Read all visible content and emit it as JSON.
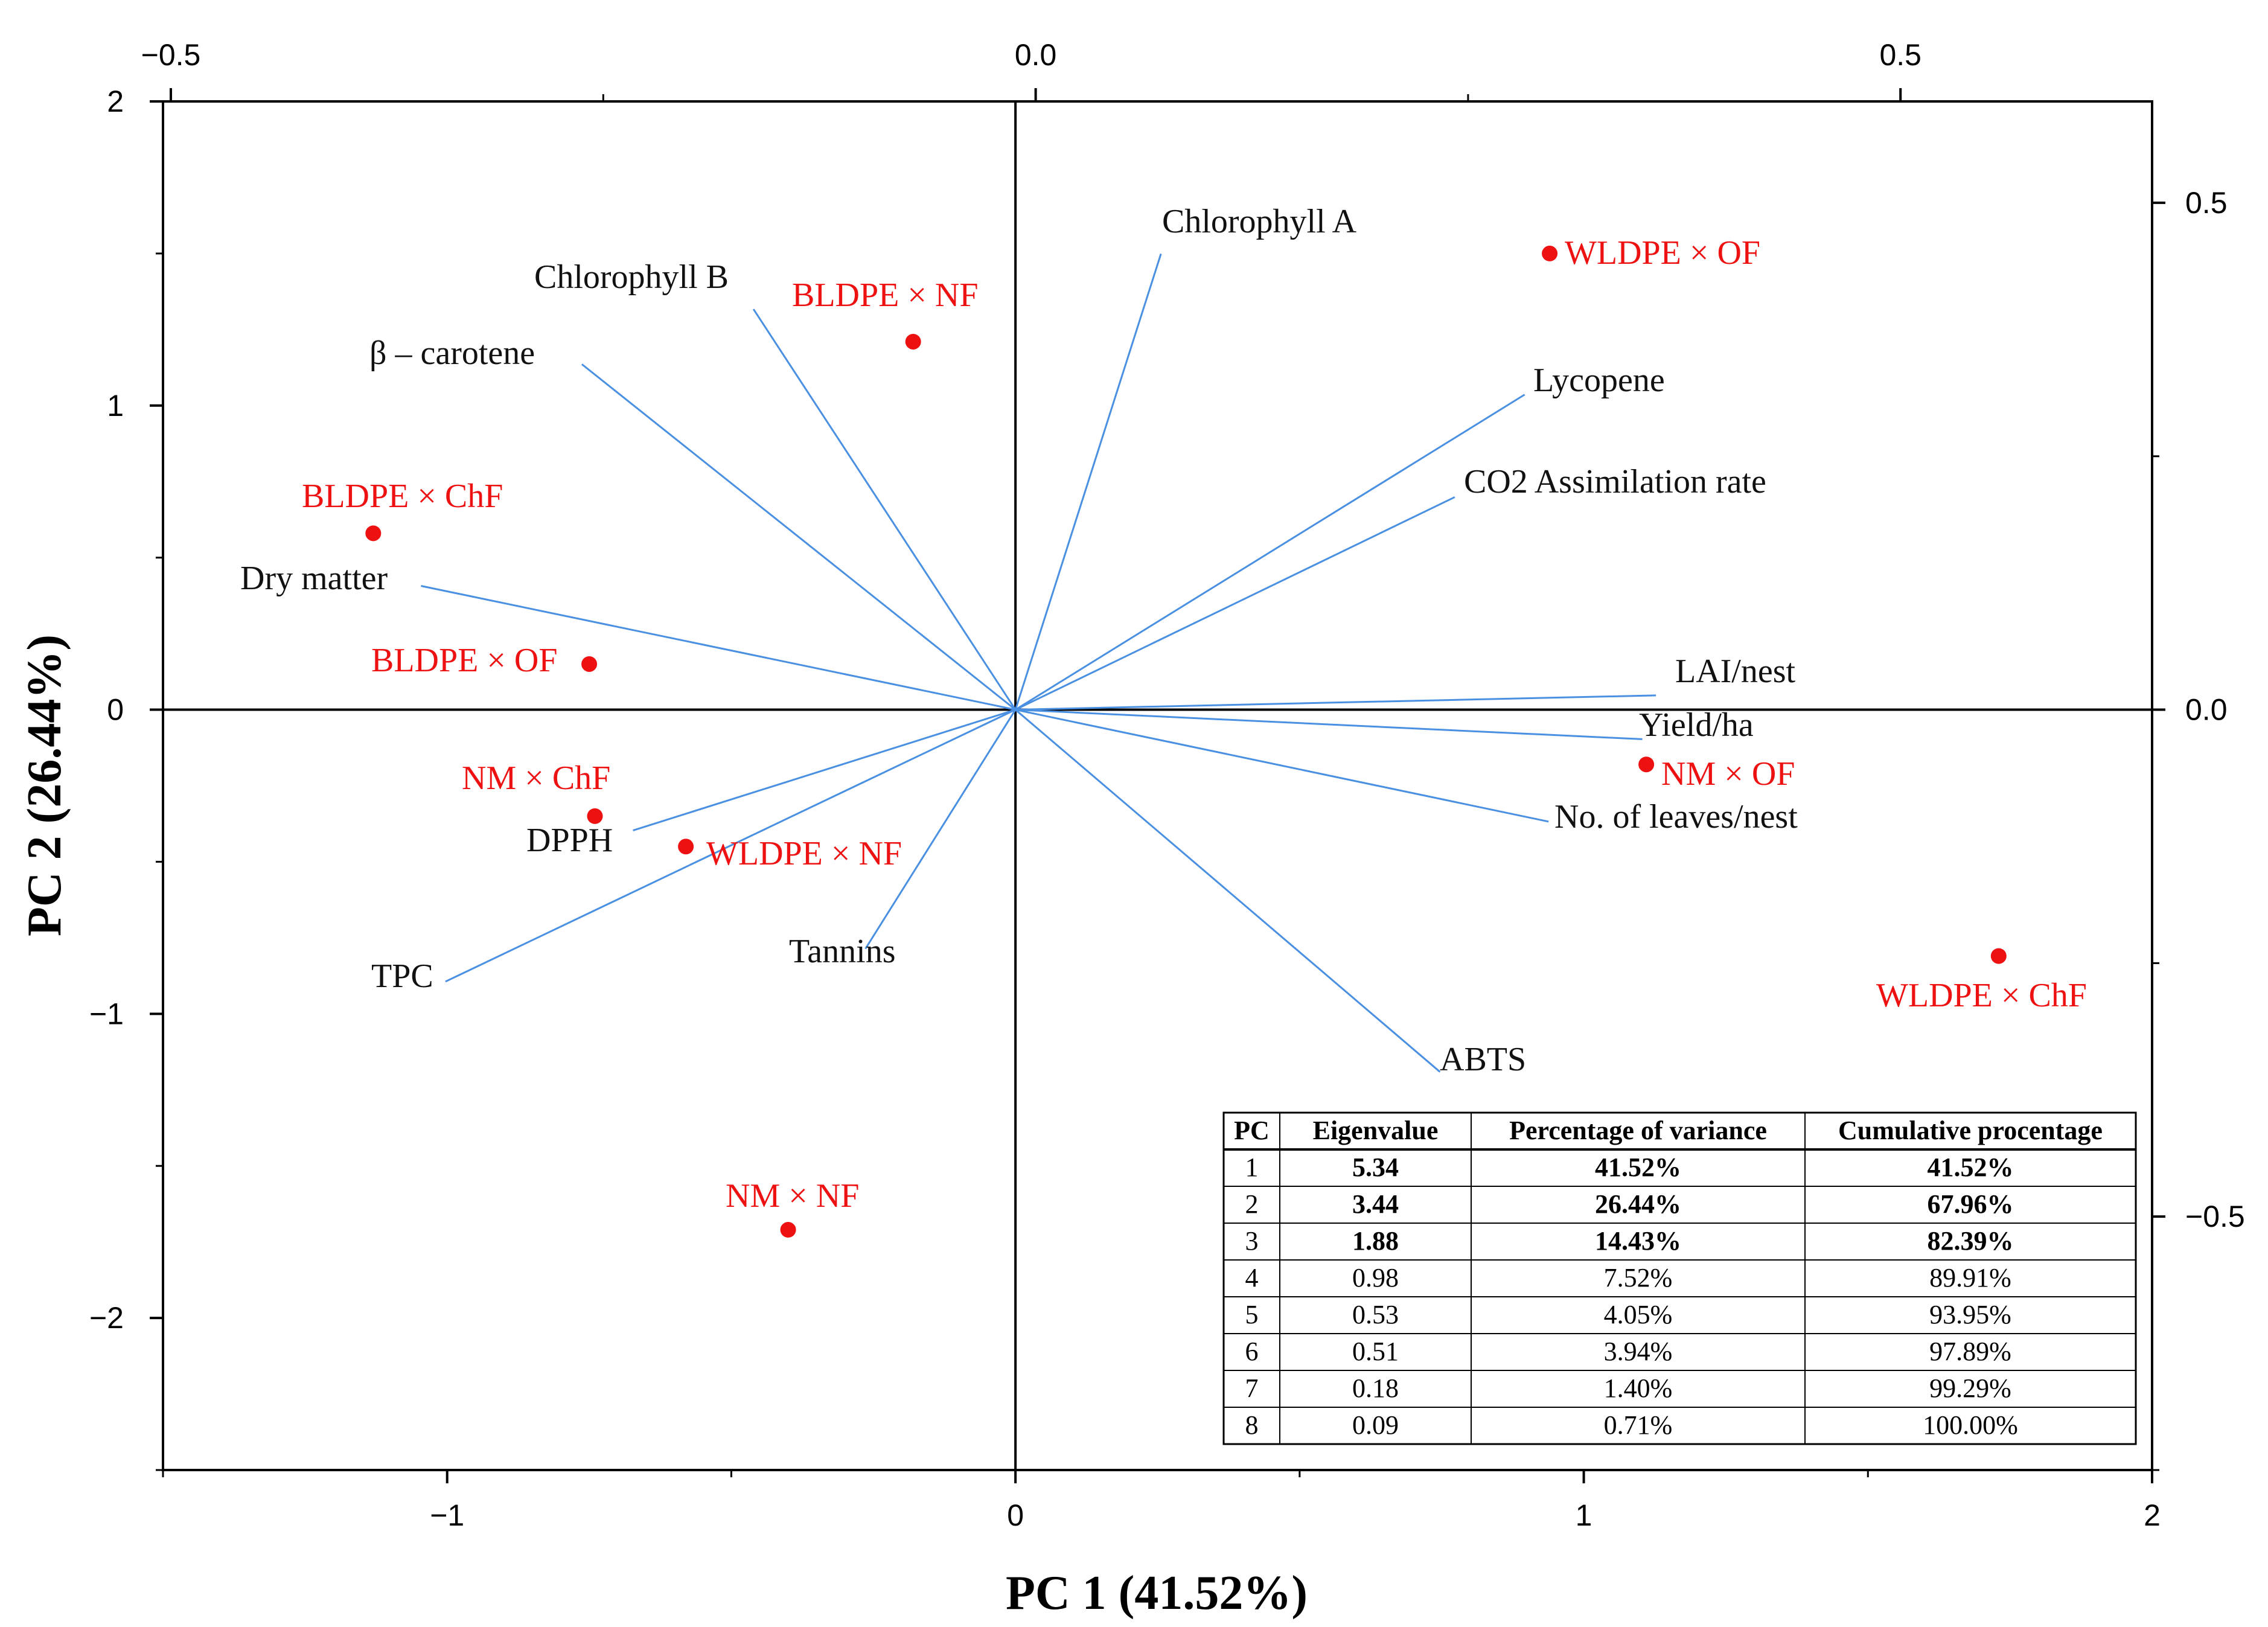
{
  "chart_data": {
    "type": "scatter",
    "subtype": "pca-biplot",
    "xlabel": "PC 1 (41.52%)",
    "ylabel": "PC 2 (26.44%)",
    "xlim": [
      -1.5,
      2.0
    ],
    "ylim": [
      -2.5,
      2.0
    ],
    "x_ticks": [
      -1,
      0,
      1,
      2
    ],
    "y_ticks": [
      -2,
      -1,
      0,
      1,
      2
    ],
    "top_axis": {
      "lim": [
        -0.5,
        0.65
      ],
      "ticks": [
        -0.5,
        0.0,
        0.5
      ],
      "tick_labels": [
        "−0.5",
        "0.0",
        "0.5"
      ]
    },
    "right_axis": {
      "lim": [
        -0.75,
        0.6
      ],
      "ticks": [
        -0.5,
        0.0,
        0.5
      ],
      "tick_labels": [
        "−0.5",
        "0.0",
        "0.5"
      ]
    },
    "x_tick_labels": [
      "−1",
      "0",
      "1",
      "2"
    ],
    "y_tick_labels": [
      "−2",
      "−1",
      "0",
      "1",
      "2"
    ],
    "loadings": [
      {
        "name": "Chlorophyll A",
        "x": 0.256,
        "y": 1.499
      },
      {
        "name": "Chlorophyll B",
        "x": -0.461,
        "y": 1.317
      },
      {
        "name": "β – carotene",
        "x": -0.763,
        "y": 1.136
      },
      {
        "name": "Lycopene",
        "x": 0.896,
        "y": 1.036
      },
      {
        "name": "CO2 Assimilation rate",
        "x": 0.773,
        "y": 0.699
      },
      {
        "name": "Dry matter",
        "x": -1.046,
        "y": 0.407
      },
      {
        "name": "LAI/nest",
        "x": 1.127,
        "y": 0.047
      },
      {
        "name": "Yield/ha",
        "x": 1.103,
        "y": -0.097
      },
      {
        "name": "No. of leaves/nest",
        "x": 0.938,
        "y": -0.368
      },
      {
        "name": "ABTS",
        "x": 0.747,
        "y": -1.191
      },
      {
        "name": "Tannins",
        "x": -0.264,
        "y": -0.786
      },
      {
        "name": "DPPH",
        "x": -0.673,
        "y": -0.397
      },
      {
        "name": "TPC",
        "x": -1.003,
        "y": -0.894
      }
    ],
    "scores": [
      {
        "name": "WLDPE × OF",
        "x": 0.94,
        "y": 1.5
      },
      {
        "name": "BLDPE × NF",
        "x": -0.18,
        "y": 1.21
      },
      {
        "name": "BLDPE × ChF",
        "x": -1.13,
        "y": 0.58
      },
      {
        "name": "BLDPE × OF",
        "x": -0.75,
        "y": 0.15
      },
      {
        "name": "NM × ChF",
        "x": -0.74,
        "y": -0.35
      },
      {
        "name": "WLDPE × NF",
        "x": -0.58,
        "y": -0.45
      },
      {
        "name": "NM × OF",
        "x": 1.11,
        "y": -0.18
      },
      {
        "name": "WLDPE × ChF",
        "x": 1.73,
        "y": -0.81
      },
      {
        "name": "NM × NF",
        "x": -0.4,
        "y": -1.71
      }
    ],
    "colors": {
      "loading": "#4a90e2",
      "score": "#ee1111",
      "axis": "#000000"
    }
  },
  "variance_table": {
    "headers": [
      "PC",
      "Eigenvalue",
      "Percentage of variance",
      "Cumulative procentage"
    ],
    "rows": [
      {
        "pc": "1",
        "eigenvalue": "5.34",
        "percent": "41.52%",
        "cumulative": "41.52%",
        "bold": true
      },
      {
        "pc": "2",
        "eigenvalue": "3.44",
        "percent": "26.44%",
        "cumulative": "67.96%",
        "bold": true
      },
      {
        "pc": "3",
        "eigenvalue": "1.88",
        "percent": "14.43%",
        "cumulative": "82.39%",
        "bold": true
      },
      {
        "pc": "4",
        "eigenvalue": "0.98",
        "percent": "7.52%",
        "cumulative": "89.91%",
        "bold": false
      },
      {
        "pc": "5",
        "eigenvalue": "0.53",
        "percent": "4.05%",
        "cumulative": "93.95%",
        "bold": false
      },
      {
        "pc": "6",
        "eigenvalue": "0.51",
        "percent": "3.94%",
        "cumulative": "97.89%",
        "bold": false
      },
      {
        "pc": "7",
        "eigenvalue": "0.18",
        "percent": "1.40%",
        "cumulative": "99.29%",
        "bold": false
      },
      {
        "pc": "8",
        "eigenvalue": "0.09",
        "percent": "0.71%",
        "cumulative": "100.00%",
        "bold": false
      }
    ]
  }
}
